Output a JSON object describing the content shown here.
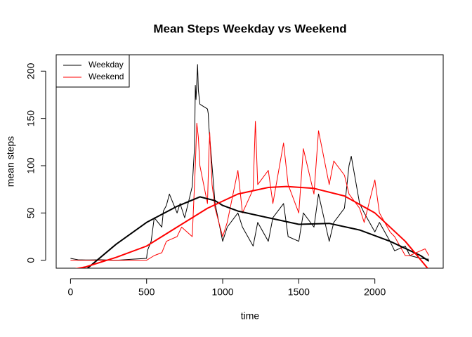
{
  "chart_data": {
    "type": "line",
    "title": "Mean Steps Weekday vs Weekend",
    "xlabel": "time",
    "ylabel": "mean steps",
    "xlim": [
      -94.2,
      2449.2
    ],
    "xticks": [
      0,
      500,
      1000,
      1500,
      2000
    ],
    "ylim": [
      -8.4,
      217.3
    ],
    "yticks": [
      0,
      50,
      100,
      150,
      200
    ],
    "legend": "top-left",
    "series": [
      {
        "name": "Weekday",
        "color": "#000000",
        "width": 1,
        "x": [
          0,
          50,
          100,
          200,
          300,
          400,
          500,
          505,
          530,
          550,
          600,
          610,
          630,
          650,
          700,
          720,
          750,
          800,
          815,
          820,
          825,
          835,
          840,
          850,
          900,
          905,
          910,
          930,
          950,
          1000,
          1030,
          1100,
          1130,
          1200,
          1230,
          1300,
          1330,
          1400,
          1430,
          1500,
          1530,
          1600,
          1630,
          1700,
          1730,
          1800,
          1830,
          1845,
          1900,
          1930,
          2000,
          2030,
          2100,
          2130,
          2200,
          2230,
          2300,
          2355
        ],
        "values": [
          2,
          0.5,
          0.3,
          0.5,
          0,
          1,
          2,
          10,
          20,
          45,
          35,
          52,
          58,
          70,
          50,
          60,
          45,
          78,
          120,
          185,
          170,
          207,
          180,
          165,
          160,
          155,
          140,
          100,
          60,
          20,
          35,
          50,
          35,
          15,
          40,
          20,
          45,
          60,
          25,
          20,
          50,
          35,
          70,
          20,
          40,
          55,
          100,
          110,
          60,
          50,
          30,
          40,
          20,
          10,
          15,
          5,
          2,
          1
        ]
      },
      {
        "name": "Weekend",
        "color": "#ff0000",
        "width": 1,
        "x": [
          0,
          100,
          500,
          550,
          600,
          630,
          700,
          730,
          800,
          820,
          830,
          840,
          850,
          900,
          910,
          915,
          930,
          950,
          1000,
          1030,
          1100,
          1130,
          1200,
          1215,
          1230,
          1300,
          1330,
          1400,
          1430,
          1500,
          1530,
          1600,
          1630,
          1700,
          1730,
          1800,
          1830,
          1900,
          1930,
          2000,
          2030,
          2100,
          2130,
          2200,
          2230,
          2300,
          2330,
          2355
        ],
        "values": [
          0,
          0,
          0,
          5,
          8,
          20,
          25,
          35,
          25,
          100,
          145,
          130,
          100,
          60,
          115,
          135,
          80,
          55,
          25,
          40,
          95,
          50,
          75,
          147,
          80,
          95,
          60,
          124,
          80,
          50,
          118,
          70,
          137,
          80,
          105,
          90,
          70,
          55,
          40,
          85,
          50,
          30,
          25,
          5,
          5,
          10,
          12,
          5
        ]
      },
      {
        "color": "#000000",
        "width": 2,
        "x": [
          100,
          300,
          500,
          700,
          850,
          950,
          1000,
          1100,
          1300,
          1500,
          1700,
          1900,
          2100,
          2300,
          2355
        ],
        "values": [
          -10,
          17,
          40,
          57,
          67,
          63,
          58,
          52,
          45,
          38,
          39,
          32,
          20,
          5,
          -1
        ]
      },
      {
        "color": "#ff0000",
        "width": 2,
        "x": [
          0,
          100,
          300,
          500,
          700,
          900,
          1100,
          1300,
          1420,
          1600,
          1800,
          2000,
          2200,
          2355
        ],
        "values": [
          -10,
          -7,
          3,
          15,
          35,
          55,
          70,
          77,
          78,
          76,
          68,
          50,
          20,
          -10
        ]
      }
    ]
  }
}
